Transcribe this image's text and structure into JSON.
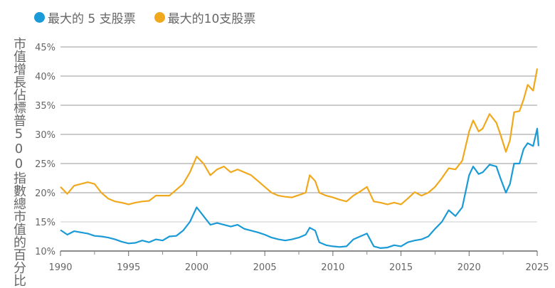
{
  "chart_data": {
    "type": "line",
    "title": "",
    "xlabel": "",
    "ylabel": "市值增長佔標普500指數總市值的百分比",
    "xlim": [
      1990,
      2025
    ],
    "ylim": [
      10,
      45
    ],
    "grid": "horizontal",
    "legend_placement": "top-left",
    "x_ticks": [
      "1990",
      "1995",
      "2000",
      "2005",
      "2010",
      "2015",
      "2020",
      "2025"
    ],
    "y_ticks": [
      "10%",
      "15%",
      "20%",
      "25%",
      "30%",
      "35%",
      "40%",
      "45%"
    ],
    "series": [
      {
        "name": "最大的 5 支股票",
        "color": "#1a9ad6",
        "x": [
          1990,
          1990.5,
          1991,
          1991.5,
          1992,
          1992.5,
          1993,
          1993.5,
          1994,
          1994.5,
          1995,
          1995.5,
          1996,
          1996.5,
          1997,
          1997.5,
          1998,
          1998.5,
          1999,
          1999.5,
          2000,
          2000.5,
          2001,
          2001.5,
          2002,
          2002.5,
          2003,
          2003.5,
          2004,
          2004.5,
          2005,
          2005.5,
          2006,
          2006.5,
          2007,
          2007.5,
          2008,
          2008.3,
          2008.7,
          2009,
          2009.5,
          2010,
          2010.5,
          2011,
          2011.5,
          2012,
          2012.5,
          2013,
          2013.5,
          2014,
          2014.5,
          2015,
          2015.5,
          2016,
          2016.5,
          2017,
          2017.5,
          2018,
          2018.5,
          2019,
          2019.5,
          2020,
          2020.3,
          2020.7,
          2021,
          2021.5,
          2022,
          2022.3,
          2022.7,
          2023,
          2023.3,
          2023.7,
          2024,
          2024.3,
          2024.7,
          2025,
          2025.1
        ],
        "values": [
          13.6,
          12.8,
          13.4,
          13.2,
          13,
          12.6,
          12.5,
          12.3,
          12,
          11.6,
          11.3,
          11.4,
          11.8,
          11.5,
          12,
          11.8,
          12.5,
          12.6,
          13.5,
          15,
          17.5,
          16,
          14.5,
          14.8,
          14.5,
          14.2,
          14.5,
          13.8,
          13.5,
          13.2,
          12.8,
          12.3,
          12,
          11.8,
          12,
          12.3,
          12.8,
          14,
          13.5,
          11.5,
          11,
          10.8,
          10.7,
          10.8,
          12,
          12.5,
          13,
          10.8,
          10.5,
          10.6,
          11,
          10.8,
          11.5,
          11.8,
          12,
          12.5,
          13.8,
          15,
          17,
          16,
          17.5,
          23,
          24.5,
          23.2,
          23.5,
          24.8,
          24.5,
          22.5,
          20,
          21.5,
          25,
          25,
          27.5,
          28.5,
          28,
          31,
          28
        ]
      },
      {
        "name": "最大的10支股票",
        "color": "#f0a81c",
        "x": [
          1990,
          1990.5,
          1991,
          1991.5,
          1992,
          1992.5,
          1993,
          1993.5,
          1994,
          1994.5,
          1995,
          1995.5,
          1996,
          1996.5,
          1997,
          1997.5,
          1998,
          1998.5,
          1999,
          1999.5,
          2000,
          2000.5,
          2001,
          2001.5,
          2002,
          2002.5,
          2003,
          2003.5,
          2004,
          2004.5,
          2005,
          2005.5,
          2006,
          2006.5,
          2007,
          2007.5,
          2008,
          2008.3,
          2008.7,
          2009,
          2009.5,
          2010,
          2010.5,
          2011,
          2011.5,
          2012,
          2012.5,
          2013,
          2013.5,
          2014,
          2014.5,
          2015,
          2015.5,
          2016,
          2016.5,
          2017,
          2017.5,
          2018,
          2018.5,
          2019,
          2019.5,
          2020,
          2020.3,
          2020.7,
          2021,
          2021.5,
          2022,
          2022.3,
          2022.7,
          2023,
          2023.3,
          2023.7,
          2024,
          2024.3,
          2024.7,
          2025
        ],
        "values": [
          21,
          19.8,
          21.2,
          21.5,
          21.8,
          21.5,
          20,
          19,
          18.5,
          18.3,
          18,
          18.3,
          18.5,
          18.6,
          19.5,
          19.5,
          19.5,
          20.5,
          21.5,
          23.5,
          26.2,
          25,
          23,
          24,
          24.5,
          23.5,
          24,
          23.5,
          23,
          22,
          21,
          20,
          19.5,
          19.3,
          19.2,
          19.6,
          20,
          23,
          22,
          20,
          19.5,
          19.2,
          18.8,
          18.5,
          19.5,
          20.2,
          21,
          18.5,
          18.3,
          18,
          18.3,
          18,
          19,
          20.1,
          19.5,
          20,
          21,
          22.5,
          24.2,
          24,
          25.5,
          30.5,
          32.4,
          30.5,
          31,
          33.5,
          32,
          30,
          27,
          29,
          33.8,
          34,
          36,
          38.5,
          37.5,
          41.3
        ]
      }
    ]
  }
}
